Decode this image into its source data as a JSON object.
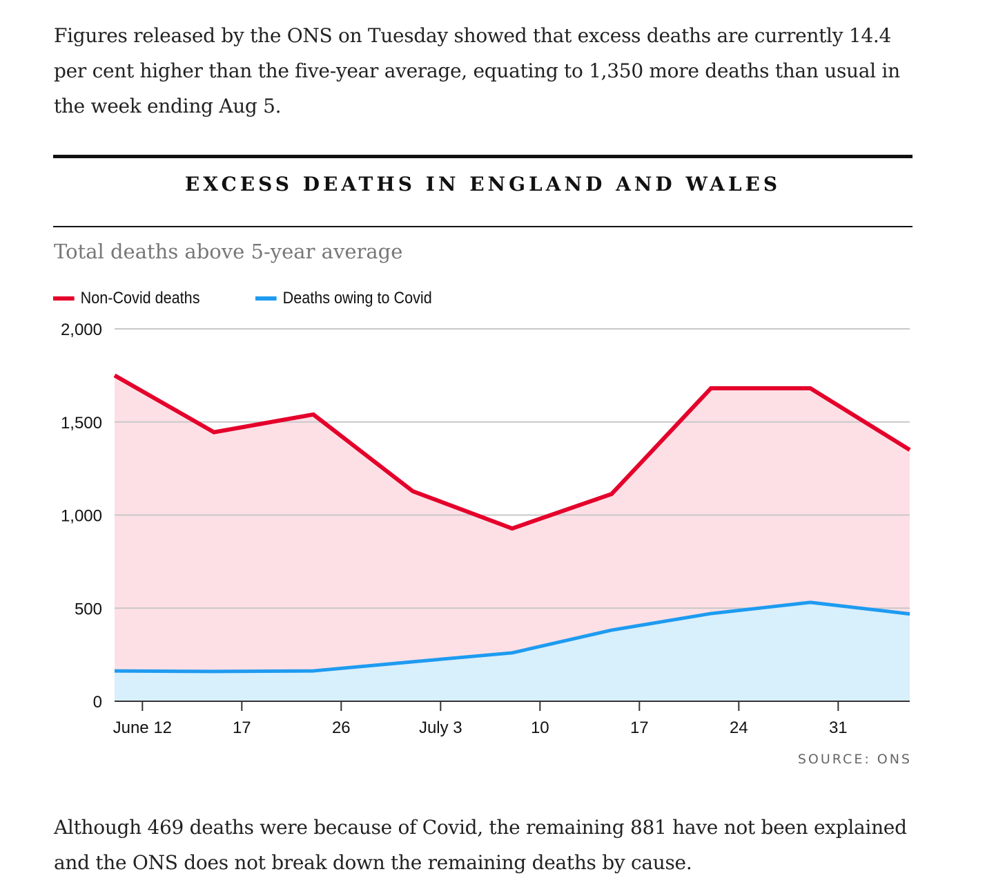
{
  "article": {
    "paragraph_before": "Figures released by the ONS on Tuesday showed that excess deaths are currently 14.4 per cent higher than the five-year average, equating to 1,350 more deaths than usual in the week ending Aug 5.",
    "paragraph_after": "Although 469 deaths were because of Covid, the remaining 881 have not been explained and the ONS does not break down the remaining deaths by cause."
  },
  "chart_data": {
    "type": "area",
    "title": "EXCESS DEATHS IN ENGLAND AND WALES",
    "subtitle": "Total deaths above 5-year average",
    "source": "SOURCE: ONS",
    "xlabel": "",
    "ylabel": "",
    "ylim": [
      0,
      2000
    ],
    "yticks": [
      0,
      500,
      1000,
      1500,
      2000
    ],
    "ytick_labels": [
      "0",
      "500",
      "1,000",
      "1,500",
      "2,000"
    ],
    "x": [
      0,
      1,
      2,
      3,
      4,
      5,
      6,
      7,
      8
    ],
    "xlim": [
      0,
      8
    ],
    "xticks": [
      0.28,
      1.28,
      2.28,
      3.28,
      4.28,
      5.28,
      6.28,
      7.28
    ],
    "xtick_labels": [
      "June 12",
      "17",
      "26",
      "July 3",
      "10",
      "17",
      "24",
      "31"
    ],
    "grid": true,
    "legend_position": "top-left",
    "series": [
      {
        "name": "Non-Covid deaths",
        "color": "#e4002b",
        "fill": "#fde0e6",
        "values": [
          1750,
          1445,
          1540,
          1128,
          928,
          1113,
          1681,
          1681,
          1350
        ]
      },
      {
        "name": "Deaths owing to Covid",
        "color": "#1e9bf0",
        "fill": "#d8effc",
        "values": [
          163,
          160,
          163,
          212,
          260,
          382,
          471,
          531,
          469
        ]
      }
    ]
  }
}
